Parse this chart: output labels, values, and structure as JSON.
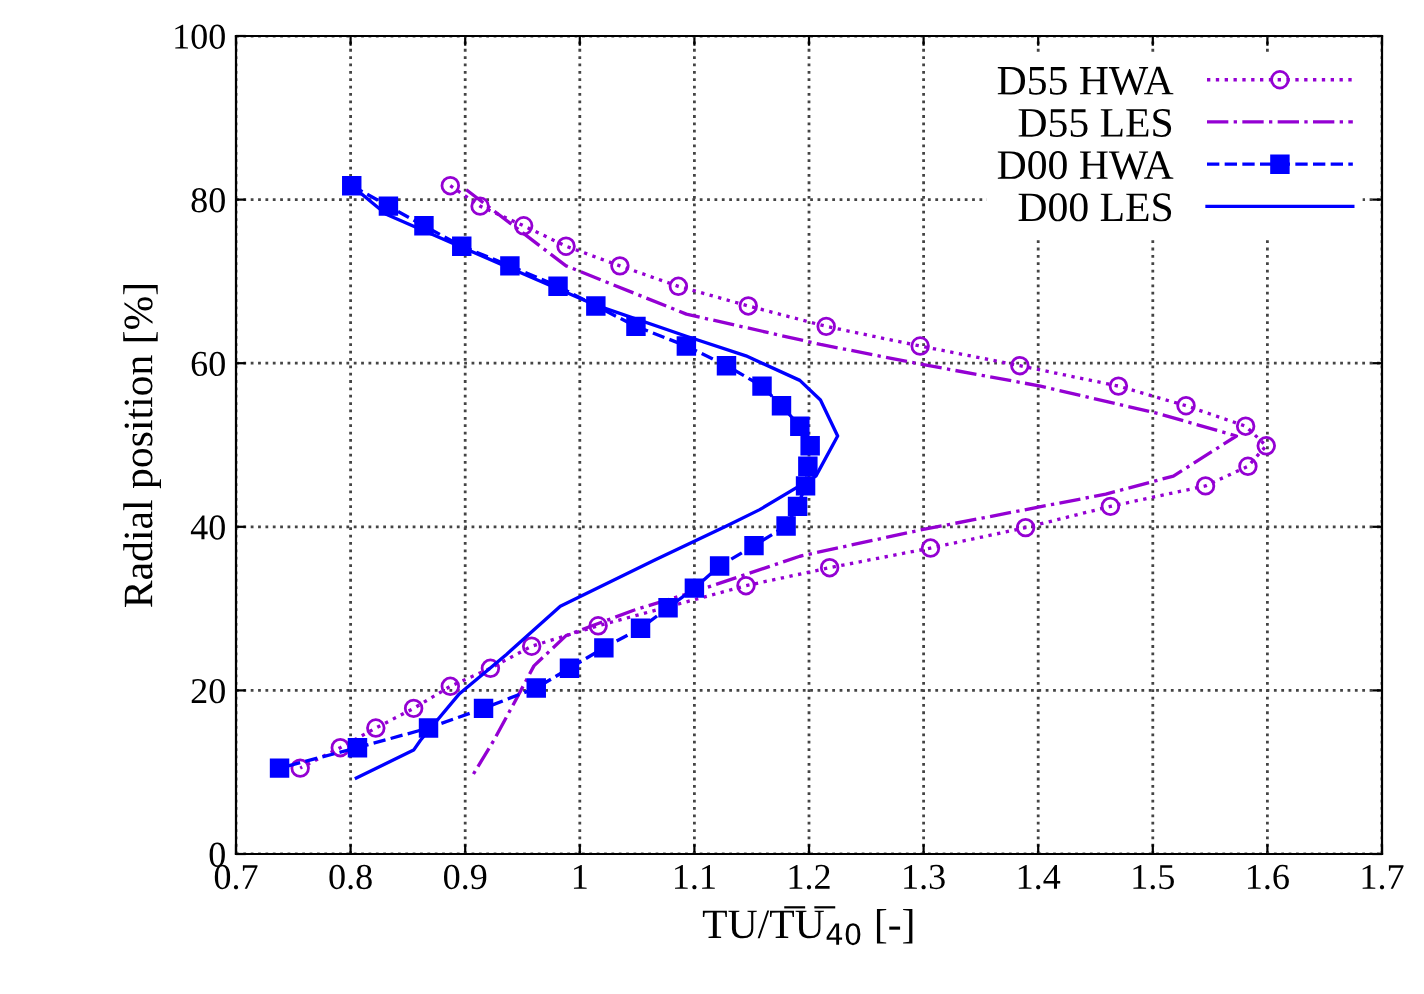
{
  "chart_data": {
    "type": "line",
    "xlabel": "TU/T̅U̅$_{40}$ [-]",
    "ylabel": "Radial position [%]",
    "xlim": [
      0.7,
      1.7
    ],
    "xticks": [
      0.7,
      0.8,
      0.9,
      1,
      1.1,
      1.2,
      1.3,
      1.4,
      1.5,
      1.6,
      1.7
    ],
    "ylim": [
      0,
      100
    ],
    "yticks": [
      0,
      20,
      40,
      60,
      80,
      100
    ],
    "grid": true,
    "legend": "top right",
    "series": [
      {
        "name": "D55 HWA",
        "color": "#9400d3",
        "marker": "circle",
        "line_style": "dotted",
        "x": [
          0.887,
          0.913,
          0.951,
          0.988,
          1.035,
          1.086,
          1.147,
          1.215,
          1.297,
          1.384,
          1.47,
          1.529,
          1.581,
          1.599,
          1.583,
          1.546,
          1.463,
          1.389,
          1.306,
          1.218,
          1.145,
          1.016,
          0.958,
          0.922,
          0.887,
          0.855,
          0.822,
          0.791,
          0.756
        ],
        "values": [
          81.7,
          79.2,
          76.8,
          74.3,
          71.9,
          69.4,
          67.0,
          64.5,
          62.1,
          59.7,
          57.2,
          54.8,
          52.3,
          49.9,
          47.4,
          45.0,
          42.5,
          39.9,
          37.4,
          35.0,
          32.8,
          27.9,
          25.4,
          22.7,
          20.5,
          17.8,
          15.4,
          13.0,
          10.5
        ]
      },
      {
        "name": "D55 LES",
        "color": "#9400d3",
        "marker": "none",
        "line_style": "dashdot",
        "x": [
          0.901,
          0.988,
          1.093,
          1.21,
          1.297,
          1.402,
          1.506,
          1.573,
          1.518,
          1.459,
          1.297,
          1.192,
          1.105,
          1.047,
          0.988,
          0.96,
          0.944,
          0.925,
          0.906
        ],
        "values": [
          81.2,
          71.9,
          66.0,
          62.3,
          59.9,
          57.2,
          53.8,
          51.1,
          46.2,
          44.0,
          39.6,
          36.4,
          32.3,
          29.8,
          26.7,
          23.0,
          18.8,
          13.9,
          9.5
        ]
      },
      {
        "name": "D00 HWA",
        "color": "#0000ff",
        "marker": "square",
        "line_style": "dashed",
        "x": [
          0.801,
          0.833,
          0.864,
          0.897,
          0.939,
          0.981,
          1.014,
          1.049,
          1.093,
          1.128,
          1.159,
          1.176,
          1.192,
          1.201,
          1.199,
          1.197,
          1.19,
          1.18,
          1.152,
          1.122,
          1.1,
          1.077,
          1.053,
          1.021,
          0.991,
          0.962,
          0.916,
          0.868,
          0.806,
          0.738
        ],
        "values": [
          81.7,
          79.2,
          76.8,
          74.3,
          71.9,
          69.4,
          67.0,
          64.5,
          62.1,
          59.7,
          57.2,
          54.8,
          52.3,
          49.9,
          47.4,
          45.0,
          42.5,
          40.1,
          37.7,
          35.2,
          32.5,
          30.1,
          27.6,
          25.2,
          22.7,
          20.3,
          17.8,
          15.4,
          13.0,
          10.5
        ]
      },
      {
        "name": "D00 LES",
        "color": "#0000ff",
        "marker": "none",
        "line_style": "solid",
        "x": [
          0.801,
          0.831,
          0.895,
          1.012,
          1.093,
          1.145,
          1.192,
          1.21,
          1.225,
          1.206,
          1.157,
          1.128,
          1.065,
          0.983,
          0.936,
          0.895,
          0.861,
          0.855,
          0.805
        ],
        "values": [
          81.7,
          78.2,
          74.3,
          67.2,
          63.3,
          60.9,
          57.9,
          55.5,
          51.1,
          46.2,
          42.1,
          40.1,
          35.9,
          30.3,
          24.4,
          19.6,
          13.9,
          12.7,
          9.3
        ]
      }
    ]
  }
}
